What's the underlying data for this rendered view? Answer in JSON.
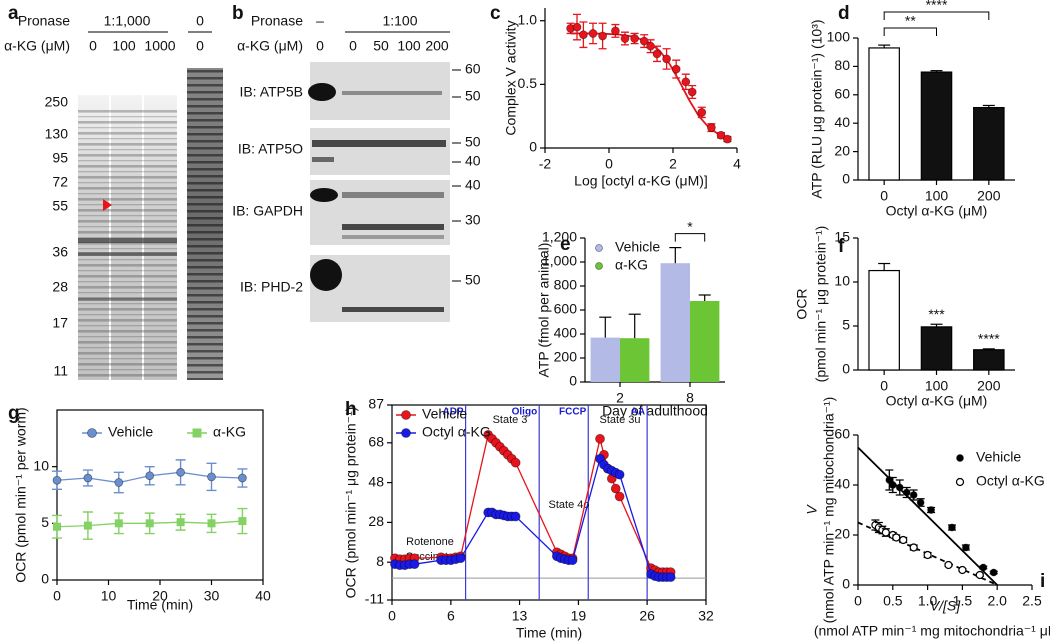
{
  "blots": [
    {
      "panel_label": "a",
      "treatment_label": "Pronase",
      "treatment_groups": [
        "1:1,000",
        "0"
      ],
      "dose_label": "α-KG (μM)",
      "lanes": [
        0,
        100,
        1000,
        0
      ],
      "markers": [
        250,
        130,
        95,
        72,
        55,
        36,
        28,
        17,
        11
      ]
    },
    {
      "panel_label": "b",
      "treatment_label": "Pronase",
      "treatment_groups": [
        "–",
        "1:100"
      ],
      "dose_label": "α-KG (μM)",
      "lanes": [
        0,
        0,
        50,
        100,
        200
      ],
      "panels": [
        {
          "label": "IB: ATP5B",
          "markers": [
            60,
            50
          ]
        },
        {
          "label": "IB: ATP5O",
          "markers": [
            50,
            40
          ]
        },
        {
          "label": "IB: GAPDH",
          "markers": [
            40,
            30
          ]
        },
        {
          "label": "IB: PHD-2",
          "markers": [
            50
          ]
        }
      ]
    }
  ],
  "chart_data": [
    {
      "panel_label": "c",
      "type": "scatter",
      "x_label": "Log [octyl α-KG (μM)]",
      "y_label": "Complex V activity",
      "xlim": [
        -2,
        4
      ],
      "ylim": [
        0,
        1.1
      ],
      "xticks": [
        -2,
        0,
        2,
        4
      ],
      "yticks": [
        0,
        0.5,
        {
          "value": 1,
          "label": "1.0"
        }
      ],
      "series": [
        {
          "color": "#e8141c",
          "marker": "filled",
          "x": [
            -1.2,
            -1,
            -0.8,
            -0.5,
            -0.2,
            0.2,
            0.5,
            0.8,
            1.1,
            1.3,
            1.5,
            1.8,
            2.1,
            2.4,
            2.6,
            2.9,
            3.2,
            3.5,
            3.7
          ],
          "values": [
            0.94,
            0.95,
            0.89,
            0.9,
            0.88,
            0.92,
            0.86,
            0.86,
            0.84,
            0.8,
            0.74,
            0.7,
            0.62,
            0.52,
            0.44,
            0.28,
            0.16,
            0.1,
            0.07
          ],
          "errors": [
            0.04,
            0.1,
            0.1,
            0.08,
            0.1,
            0.05,
            0.05,
            0.04,
            0.05,
            0.05,
            0.06,
            0.08,
            0.07,
            0.06,
            0.05,
            0.04,
            0.03,
            0.02,
            0.02
          ]
        }
      ],
      "fits": [
        {
          "color": "#e8141c",
          "dash": false,
          "x": [
            -1.2,
            -0.7,
            -0.2,
            0.3,
            0.8,
            1.3,
            1.6,
            1.9,
            2.2,
            2.5,
            2.8,
            3.1,
            3.4,
            3.7
          ],
          "values": [
            0.9,
            0.9,
            0.898,
            0.892,
            0.874,
            0.823,
            0.759,
            0.658,
            0.524,
            0.379,
            0.254,
            0.166,
            0.112,
            0.083
          ]
        }
      ]
    },
    {
      "panel_label": "d",
      "type": "bar",
      "x_label": "Octyl α-KG (μM)",
      "y_label": "ATP (RLU μg protein⁻¹) (10³)",
      "categories": [
        "0",
        "100",
        "200"
      ],
      "values": [
        93,
        76,
        51
      ],
      "errors": [
        2,
        1,
        1.5
      ],
      "colors": [
        "#ffffff",
        "#111111",
        "#111111"
      ],
      "ylim": [
        0,
        100
      ],
      "yticks": [
        0,
        20,
        40,
        60,
        80,
        100
      ],
      "significance": [
        "**",
        "****"
      ]
    },
    {
      "panel_label": "e",
      "type": "bar",
      "x_label": "Day of adulthood",
      "y_label": "ATP (fmol per animal)",
      "categories": [
        "2",
        "8"
      ],
      "series": [
        {
          "name": "Vehicle",
          "color": "#b4bae6",
          "values": [
            370,
            990
          ],
          "errors": [
            170,
            130
          ]
        },
        {
          "name": "α-KG",
          "color": "#6cc534",
          "values": [
            365,
            675
          ],
          "errors": [
            200,
            50
          ]
        }
      ],
      "ylim": [
        0,
        1200
      ],
      "yticks": [
        0,
        200,
        400,
        600,
        800,
        {
          "value": 1000,
          "label": "1,000"
        },
        {
          "value": 1200,
          "label": "1,200"
        }
      ],
      "legend": "upper left",
      "significance": [
        "*"
      ]
    },
    {
      "panel_label": "f",
      "type": "bar",
      "x_label": "Octyl α-KG (μM)",
      "y_label": [
        "OCR",
        "(pmol min⁻¹ μg protein⁻¹)"
      ],
      "categories": [
        "0",
        "100",
        "200"
      ],
      "values": [
        11.3,
        4.9,
        2.3
      ],
      "errors": [
        0.8,
        0.3,
        0.1
      ],
      "colors": [
        "#ffffff",
        "#111111",
        "#111111"
      ],
      "ylim": [
        0,
        15
      ],
      "yticks": [
        0,
        5,
        10,
        15
      ],
      "bar_labels": [
        null,
        "***",
        "****"
      ]
    },
    {
      "panel_label": "g",
      "type": "line",
      "frame": "box",
      "x_label": "Time (min)",
      "y_label": "OCR (pmol min⁻¹ per worm)",
      "xlim": [
        0,
        40
      ],
      "ylim": [
        0,
        15
      ],
      "xticks": [
        0,
        10,
        20,
        30,
        40
      ],
      "yticks": [
        0,
        5,
        10
      ],
      "legend": "top",
      "series": [
        {
          "name": "Vehicle",
          "color": "#6a8fd0",
          "marker": "circle",
          "x": [
            0,
            6,
            12,
            18,
            24,
            30,
            36
          ],
          "values": [
            8.8,
            9.0,
            8.6,
            9.2,
            9.5,
            9.1,
            9.0
          ],
          "errors": [
            0.8,
            0.7,
            0.9,
            0.8,
            1.1,
            1.2,
            0.8
          ]
        },
        {
          "name": "α-KG",
          "color": "#84d164",
          "marker": "square",
          "x": [
            0,
            6,
            12,
            18,
            24,
            30,
            36
          ],
          "values": [
            4.7,
            4.8,
            5.0,
            5.0,
            5.1,
            5.0,
            5.2
          ],
          "errors": [
            1.0,
            1.2,
            0.9,
            0.9,
            0.7,
            0.8,
            1.1
          ]
        }
      ]
    },
    {
      "panel_label": "h",
      "type": "line",
      "frame": "box",
      "x_label": "Time (min)",
      "y_label": "OCR (pmol min⁻¹ μg protein⁻¹)",
      "xlim": [
        0,
        32
      ],
      "ylim": [
        -11,
        87
      ],
      "xticks": [
        0,
        6,
        13,
        19,
        26,
        32
      ],
      "yticks": [
        -11,
        8,
        28,
        48,
        68,
        87
      ],
      "legend": "upper left",
      "hline": 0,
      "injections": [
        {
          "label": "ADP",
          "x": 7.5
        },
        {
          "label": "Oligo",
          "x": 15
        },
        {
          "label": "FCCP",
          "x": 20
        },
        {
          "label": "AA",
          "x": 26
        }
      ],
      "annotations": [
        "State 3",
        "Rotenone",
        "Succinate",
        "State 4o",
        "State 3u"
      ],
      "series": [
        {
          "name": "Vehicle",
          "color": "#e8141c",
          "marker": "circle",
          "x": [
            0.3,
            0.8,
            1.3,
            1.8,
            2.3,
            5,
            5.5,
            6,
            6.5,
            7,
            9.8,
            10.2,
            10.6,
            11,
            11.4,
            11.8,
            12.2,
            12.6,
            16.8,
            17.2,
            17.6,
            18,
            18.4,
            21.2,
            21.6,
            22,
            22.4,
            22.8,
            23.2,
            26.4,
            26.8,
            27.2,
            27.6,
            28,
            28.4
          ],
          "values": [
            10,
            9.5,
            9.5,
            10,
            10,
            10.5,
            10,
            10,
            10.5,
            11,
            72,
            70,
            68,
            66,
            64,
            62,
            60,
            58,
            13,
            12,
            11,
            10,
            10,
            70,
            62,
            55,
            50,
            45,
            41,
            5,
            4,
            3,
            3,
            3,
            3
          ]
        },
        {
          "name": "Octyl α-KG",
          "color": "#1a1ae6",
          "marker": "circle",
          "x": [
            0.3,
            0.8,
            1.3,
            1.8,
            2.3,
            5,
            5.5,
            6,
            6.5,
            7,
            9.8,
            10.2,
            10.6,
            11,
            11.4,
            11.8,
            12.2,
            12.6,
            16.8,
            17.2,
            17.6,
            18,
            18.4,
            21.2,
            21.6,
            22,
            22.4,
            22.8,
            23.2,
            26.4,
            26.8,
            27.2,
            27.6,
            28,
            28.4
          ],
          "values": [
            7,
            6.5,
            6.5,
            7,
            7,
            9,
            9,
            9,
            9.5,
            10,
            33,
            33,
            32,
            32,
            31.5,
            31,
            31,
            31,
            11,
            10,
            9.5,
            9,
            9,
            60,
            57,
            55,
            54,
            53,
            52,
            2,
            1,
            0.5,
            0.5,
            0.5,
            0.5
          ]
        }
      ]
    },
    {
      "panel_label": "i",
      "type": "scatter",
      "x_label": [
        "V/[S]",
        "(nmol ATP min⁻¹ mg mitochondria⁻¹ μM⁻¹)"
      ],
      "y_label": [
        "V",
        "(nmol ATP min⁻¹ mg mitochondria⁻¹)"
      ],
      "xlim": [
        0,
        2.5
      ],
      "ylim": [
        0,
        60
      ],
      "xticks": [
        0,
        0.5,
        {
          "value": 1,
          "label": "1.0"
        },
        1.5,
        {
          "value": 2,
          "label": "2.0"
        },
        2.5
      ],
      "yticks": [
        0,
        20,
        40,
        60
      ],
      "legend": "upper right",
      "series": [
        {
          "name": "Vehicle",
          "color": "#000000",
          "marker": "filled",
          "x": [
            0.45,
            0.5,
            0.6,
            0.7,
            0.8,
            0.9,
            1.05,
            1.35,
            1.55,
            1.8,
            1.95
          ],
          "values": [
            42,
            40,
            39,
            37,
            36,
            33,
            30,
            23,
            15,
            7,
            5
          ],
          "errors": [
            4,
            3,
            3,
            2,
            2,
            1.5,
            1,
            1,
            1,
            0.5,
            0.5
          ]
        },
        {
          "name": "Octyl α-KG",
          "color": "#000000",
          "marker": "open",
          "x": [
            0.25,
            0.3,
            0.35,
            0.4,
            0.5,
            0.55,
            0.65,
            0.8,
            1.0,
            1.3,
            1.5,
            1.75
          ],
          "values": [
            24,
            23,
            22,
            21,
            20,
            19,
            18,
            15,
            12,
            8,
            6,
            4
          ],
          "errors": [
            2,
            2,
            1.5,
            1.5,
            1,
            1,
            1,
            1,
            1,
            0.5,
            0.5,
            0.5
          ]
        }
      ],
      "fits": [
        {
          "color": "#000000",
          "dash": false,
          "x": [
            0,
            2
          ],
          "values": [
            55,
            0
          ]
        },
        {
          "color": "#000000",
          "dash": true,
          "x": [
            0,
            2
          ],
          "values": [
            25,
            0
          ]
        }
      ]
    }
  ]
}
